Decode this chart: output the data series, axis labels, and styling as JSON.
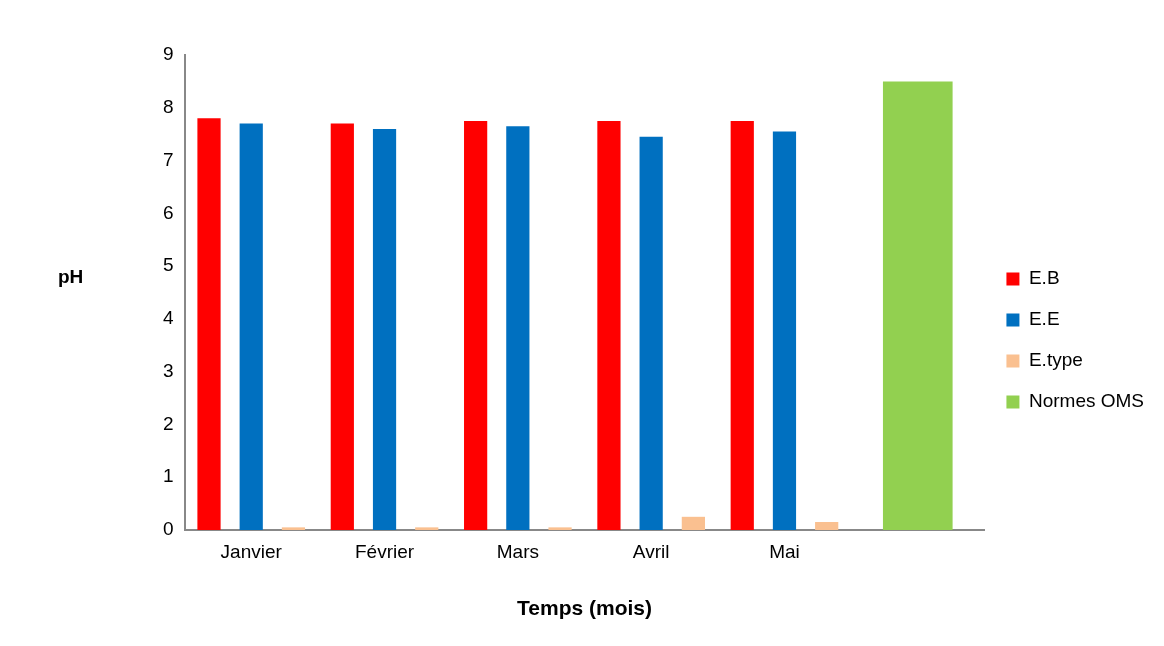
{
  "chart_data": {
    "type": "bar",
    "xlabel": "Temps (mois)",
    "ylabel": "pH",
    "categories": [
      "Janvier",
      "Février",
      "Mars",
      "Avril",
      "Mai",
      null
    ],
    "series": [
      {
        "name": "E.B",
        "color": "#ff0000",
        "values": [
          7.8,
          7.7,
          7.75,
          7.75,
          7.75,
          null
        ]
      },
      {
        "name": "E.E",
        "color": "#0070c0",
        "values": [
          7.7,
          7.6,
          7.65,
          7.45,
          7.55,
          null
        ]
      },
      {
        "name": "E.type",
        "color": "#fac090",
        "values": [
          0.05,
          0.05,
          0.05,
          0.25,
          0.15,
          null
        ]
      },
      {
        "name": "Normes OMS",
        "color": "#92d050",
        "values": [
          null,
          null,
          null,
          null,
          null,
          8.5
        ]
      }
    ],
    "ylim": [
      0,
      9
    ],
    "yticks": [
      0,
      1,
      2,
      3,
      4,
      5,
      6,
      7,
      8,
      9
    ],
    "grid": false,
    "legend": "right"
  }
}
